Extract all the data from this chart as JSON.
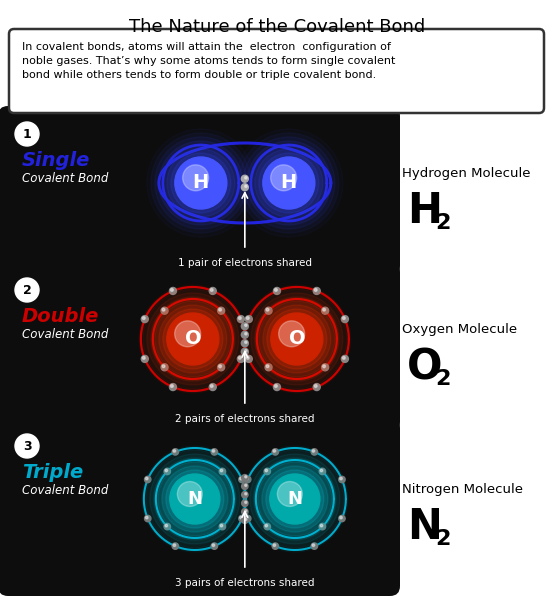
{
  "title": "The Nature of the Covalent Bond",
  "intro_text": "In covalent bonds, atoms will attain the  electron  configuration of\nnoble gases. That’s why some atoms tends to form single covalent\nbond while others tends to form double or triple covalent bond.",
  "bg_color": "#ffffff",
  "panel_bg": "#0d0d0d",
  "sections": [
    {
      "number": "1",
      "bond_type": "Single",
      "bond_label": "Covalent Bond",
      "bond_color": "#2222dd",
      "atom_color_inner": "#4455ff",
      "atom_glow": "#3344ee",
      "orbit_color": "#2233cc",
      "label": "1 pair of electrons shared",
      "atom_symbol": "H",
      "molecule": "H",
      "subscript": "2",
      "molecule_label": "Hydrogen Molecule",
      "electron_pairs": 1
    },
    {
      "number": "2",
      "bond_type": "Double",
      "bond_label": "Covalent Bond",
      "bond_color": "#cc0000",
      "atom_color_inner": "#cc2200",
      "atom_glow": "#ff3300",
      "orbit_color": "#cc0000",
      "label": "2 pairs of electrons shared",
      "atom_symbol": "O",
      "molecule": "O",
      "subscript": "2",
      "molecule_label": "Oxygen Molecule",
      "electron_pairs": 2
    },
    {
      "number": "3",
      "bond_type": "Triple",
      "bond_label": "Covalent Bond",
      "bond_color": "#00aacc",
      "atom_color_inner": "#00aaaa",
      "atom_glow": "#00ccdd",
      "orbit_color": "#00aacc",
      "label": "3 pairs of electrons shared",
      "atom_symbol": "N",
      "molecule": "N",
      "subscript": "2",
      "molecule_label": "Nitrogen Molecule",
      "electron_pairs": 3
    }
  ]
}
